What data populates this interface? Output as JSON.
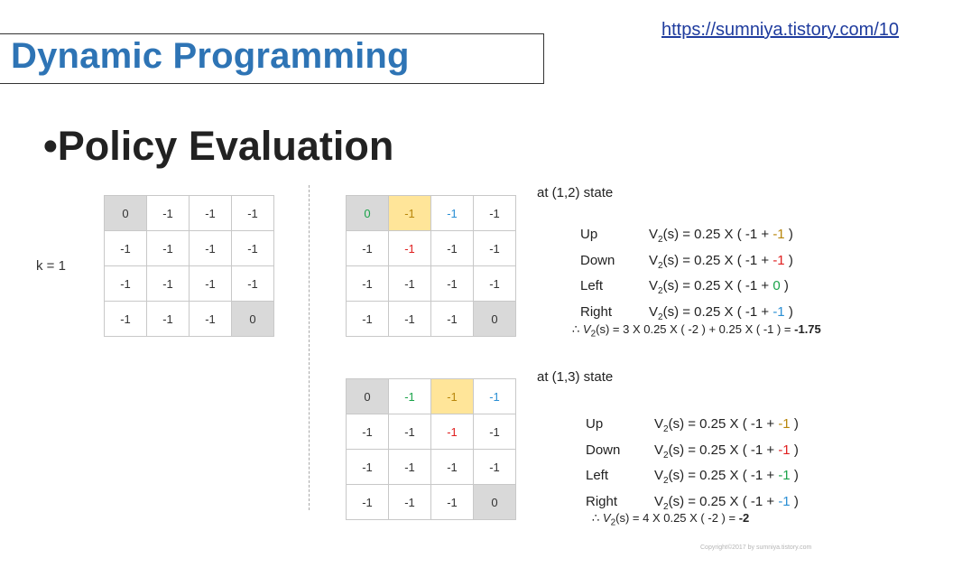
{
  "slide": {
    "title": "Dynamic Programming",
    "url": "https://sumniya.tistory.com/10",
    "heading": "•Policy Evaluation",
    "k_label": "k = 1",
    "copyright": "Copyright©2017 by sumniya.tistory.com"
  },
  "grid_k1": [
    [
      "0",
      "-1",
      "-1",
      "-1"
    ],
    [
      "-1",
      "-1",
      "-1",
      "-1"
    ],
    [
      "-1",
      "-1",
      "-1",
      "-1"
    ],
    [
      "-1",
      "-1",
      "-1",
      "0"
    ]
  ],
  "grid_state12": [
    [
      "0",
      "-1",
      "-1",
      "-1"
    ],
    [
      "-1",
      "-1",
      "-1",
      "-1"
    ],
    [
      "-1",
      "-1",
      "-1",
      "-1"
    ],
    [
      "-1",
      "-1",
      "-1",
      "0"
    ]
  ],
  "grid_state13": [
    [
      "0",
      "-1",
      "-1",
      "-1"
    ],
    [
      "-1",
      "-1",
      "-1",
      "-1"
    ],
    [
      "-1",
      "-1",
      "-1",
      "-1"
    ],
    [
      "-1",
      "-1",
      "-1",
      "0"
    ]
  ],
  "state12": {
    "label": "at (1,2) state",
    "rows": [
      {
        "dir": "Up",
        "pre": "0.25 X ( -1 + ",
        "val": "-1",
        "post": " )"
      },
      {
        "dir": "Down",
        "pre": "0.25 X ( -1 + ",
        "val": "-1",
        "post": " )"
      },
      {
        "dir": "Left",
        "pre": "0.25 X ( -1 + ",
        "val": "0",
        "post": " )"
      },
      {
        "dir": "Right",
        "pre": "0.25 X ( -1 + ",
        "val": "-1",
        "post": " )"
      }
    ],
    "result_expr": "(s) = 3 X 0.25 X ( -2 ) + 0.25 X ( -1 ) = ",
    "result_value": "-1.75"
  },
  "state13": {
    "label": "at (1,3) state",
    "rows": [
      {
        "dir": "Up",
        "pre": "0.25 X ( -1 + ",
        "val": "-1",
        "post": " )"
      },
      {
        "dir": "Down",
        "pre": "0.25 X ( -1 + ",
        "val": "-1",
        "post": " )"
      },
      {
        "dir": "Left",
        "pre": "0.25 X ( -1 + ",
        "val": "-1",
        "post": " )"
      },
      {
        "dir": "Right",
        "pre": "0.25 X ( -1 + ",
        "val": "-1",
        "post": " )"
      }
    ],
    "result_expr": "(s) = 4 X 0.25 X ( -2 ) = ",
    "result_value": "-2"
  },
  "colors": {
    "title": "#2e74b5",
    "highlight": "#ffe599",
    "terminal": "#d9d9d9",
    "green": "#1aa34a",
    "red": "#e02020",
    "blue": "#2a8fd4",
    "gold": "#b8860b"
  }
}
